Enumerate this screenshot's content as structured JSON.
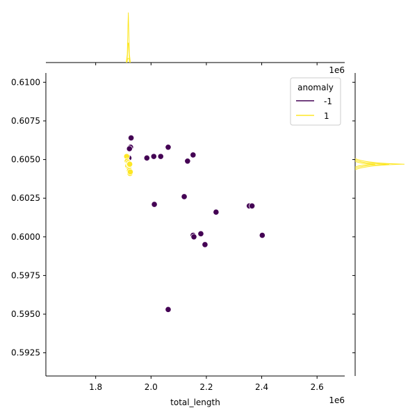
{
  "chart_data": {
    "type": "scatter",
    "title": "",
    "xlabel": "total_length",
    "ylabel": "",
    "x_offset_label": "1e6",
    "y_offset_label": "1e6",
    "xlim": [
      1.62,
      2.7
    ],
    "ylim": [
      0.591,
      0.6106
    ],
    "x_ticks": [
      1.8,
      2.0,
      2.2,
      2.4,
      2.6
    ],
    "x_tick_labels": [
      "1.8",
      "2.0",
      "2.2",
      "2.4",
      "2.6"
    ],
    "y_ticks": [
      0.5925,
      0.595,
      0.5975,
      0.6,
      0.6025,
      0.605,
      0.6075,
      0.61
    ],
    "y_tick_labels": [
      "0.5925",
      "0.5950",
      "0.5975",
      "0.6000",
      "0.6025",
      "0.6050",
      "0.6075",
      "0.6100"
    ],
    "grid": false,
    "legend": {
      "title": "anomaly",
      "placement": "top-right",
      "entries": [
        {
          "label": "-1",
          "color": "#440154"
        },
        {
          "label": "1",
          "color": "#fde725"
        }
      ]
    },
    "series": [
      {
        "name": "-1",
        "color": "#440154",
        "points": [
          {
            "x": 1.928,
            "y": 0.6064
          },
          {
            "x": 1.926,
            "y": 0.6058
          },
          {
            "x": 1.922,
            "y": 0.6057
          },
          {
            "x": 1.92,
            "y": 0.6051
          },
          {
            "x": 1.918,
            "y": 0.6045
          },
          {
            "x": 1.985,
            "y": 0.6051
          },
          {
            "x": 2.01,
            "y": 0.6052
          },
          {
            "x": 2.035,
            "y": 0.6052
          },
          {
            "x": 2.062,
            "y": 0.6058
          },
          {
            "x": 2.132,
            "y": 0.6049
          },
          {
            "x": 2.152,
            "y": 0.6053
          },
          {
            "x": 2.012,
            "y": 0.6021
          },
          {
            "x": 2.12,
            "y": 0.6026
          },
          {
            "x": 2.235,
            "y": 0.6016
          },
          {
            "x": 2.355,
            "y": 0.602
          },
          {
            "x": 2.365,
            "y": 0.602
          },
          {
            "x": 2.152,
            "y": 0.6001
          },
          {
            "x": 2.155,
            "y": 0.6
          },
          {
            "x": 2.18,
            "y": 0.6002
          },
          {
            "x": 2.195,
            "y": 0.5995
          },
          {
            "x": 2.402,
            "y": 0.6001
          },
          {
            "x": 2.062,
            "y": 0.5953
          }
        ]
      },
      {
        "name": "1",
        "color": "#fde725",
        "points": [
          {
            "x": 1.912,
            "y": 0.6052
          },
          {
            "x": 1.914,
            "y": 0.6049
          },
          {
            "x": 1.916,
            "y": 0.6046
          },
          {
            "x": 1.918,
            "y": 0.6048
          },
          {
            "x": 1.92,
            "y": 0.6047
          },
          {
            "x": 1.921,
            "y": 0.6044
          },
          {
            "x": 1.922,
            "y": 0.6043
          },
          {
            "x": 1.924,
            "y": 0.6041
          },
          {
            "x": 1.923,
            "y": 0.6047
          },
          {
            "x": 1.925,
            "y": 0.6042
          }
        ]
      }
    ],
    "marginal_x": {
      "series": [
        {
          "name": "1",
          "color": "#fde725",
          "peak_x": 1.918,
          "shape": "narrow-spike"
        }
      ]
    },
    "marginal_y": {
      "series": [
        {
          "name": "1",
          "color": "#fde725",
          "peak_y": 0.6047,
          "shape": "narrow-spike"
        }
      ]
    }
  }
}
